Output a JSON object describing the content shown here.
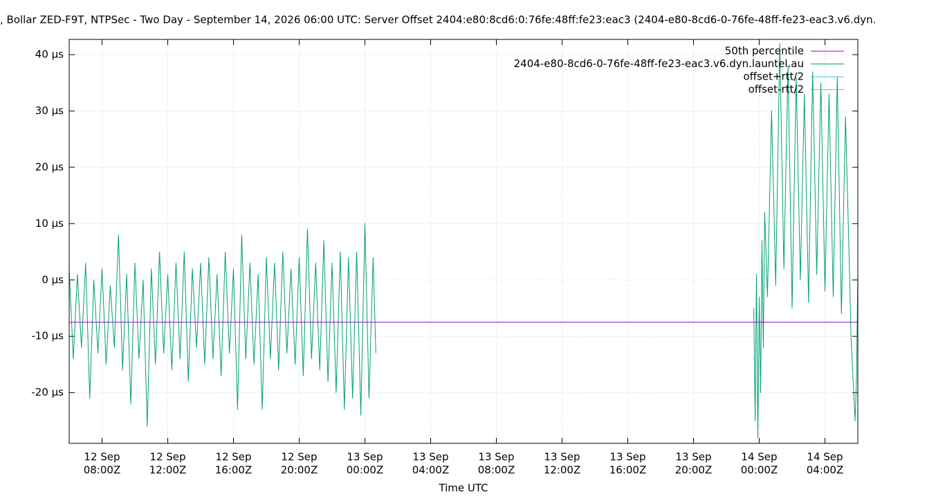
{
  "chart_data": {
    "type": "line",
    "title": ", Bollar ZED-F9T, NTPSec - Two Day - September 14, 2026 06:00 UTC: Server Offset 2404:e80:8cd6:0:76fe:48ff:fe23:eac3 (2404-e80-8cd6-0-76fe-48ff-fe23-eac3.v6.dyn.",
    "x_label": "Time UTC",
    "xlim": [
      "12 Sep 06:00Z",
      "14 Sep 06:00Z"
    ],
    "xticks": [
      {
        "value": "12 Sep 08:00Z",
        "label": [
          "12 Sep",
          "08:00Z"
        ]
      },
      {
        "value": "12 Sep 12:00Z",
        "label": [
          "12 Sep",
          "12:00Z"
        ]
      },
      {
        "value": "12 Sep 16:00Z",
        "label": [
          "12 Sep",
          "16:00Z"
        ]
      },
      {
        "value": "12 Sep 20:00Z",
        "label": [
          "12 Sep",
          "20:00Z"
        ]
      },
      {
        "value": "13 Sep 00:00Z",
        "label": [
          "13 Sep",
          "00:00Z"
        ]
      },
      {
        "value": "13 Sep 04:00Z",
        "label": [
          "13 Sep",
          "04:00Z"
        ]
      },
      {
        "value": "13 Sep 08:00Z",
        "label": [
          "13 Sep",
          "08:00Z"
        ]
      },
      {
        "value": "13 Sep 12:00Z",
        "label": [
          "13 Sep",
          "12:00Z"
        ]
      },
      {
        "value": "13 Sep 16:00Z",
        "label": [
          "13 Sep",
          "16:00Z"
        ]
      },
      {
        "value": "13 Sep 20:00Z",
        "label": [
          "13 Sep",
          "20:00Z"
        ]
      },
      {
        "value": "14 Sep 00:00Z",
        "label": [
          "14 Sep",
          "00:00Z"
        ]
      },
      {
        "value": "14 Sep 04:00Z",
        "label": [
          "14 Sep",
          "04:00Z"
        ]
      }
    ],
    "ylim": [
      -29,
      42.7
    ],
    "yticks": [
      {
        "value": -20,
        "label": "-20 µs"
      },
      {
        "value": -10,
        "label": "-10 µs"
      },
      {
        "value": 0,
        "label": "0 µs"
      },
      {
        "value": 10,
        "label": "10 µs"
      },
      {
        "value": 20,
        "label": "20 µs"
      },
      {
        "value": 30,
        "label": "30 µs"
      },
      {
        "value": 40,
        "label": "40 µs"
      }
    ],
    "grid": true,
    "legend": "top-right",
    "series": [
      {
        "name": "50th percentile",
        "color": "#9400d3",
        "x": [
          "12 Sep 06:00Z",
          "14 Sep 06:00Z"
        ],
        "values": [
          -7.5,
          -7.5
        ]
      },
      {
        "name": "2404-e80-8cd6-0-76fe-48ff-fe23-eac3.v6.dyn.launtel.au",
        "color": "#009e73",
        "x": [
          "12 Sep 06:00Z",
          "12 Sep 06:15Z",
          "12 Sep 06:30Z",
          "12 Sep 06:45Z",
          "12 Sep 07:00Z",
          "12 Sep 07:15Z",
          "12 Sep 07:30Z",
          "12 Sep 07:45Z",
          "12 Sep 08:00Z",
          "12 Sep 08:15Z",
          "12 Sep 08:30Z",
          "12 Sep 08:45Z",
          "12 Sep 09:00Z",
          "12 Sep 09:15Z",
          "12 Sep 09:30Z",
          "12 Sep 09:45Z",
          "12 Sep 10:00Z",
          "12 Sep 10:15Z",
          "12 Sep 10:30Z",
          "12 Sep 10:45Z",
          "12 Sep 11:00Z",
          "12 Sep 11:15Z",
          "12 Sep 11:30Z",
          "12 Sep 11:45Z",
          "12 Sep 12:00Z",
          "12 Sep 12:15Z",
          "12 Sep 12:30Z",
          "12 Sep 12:45Z",
          "12 Sep 13:00Z",
          "12 Sep 13:15Z",
          "12 Sep 13:30Z",
          "12 Sep 13:45Z",
          "12 Sep 14:00Z",
          "12 Sep 14:15Z",
          "12 Sep 14:30Z",
          "12 Sep 14:45Z",
          "12 Sep 15:00Z",
          "12 Sep 15:15Z",
          "12 Sep 15:30Z",
          "12 Sep 15:45Z",
          "12 Sep 16:00Z",
          "12 Sep 16:15Z",
          "12 Sep 16:30Z",
          "12 Sep 16:45Z",
          "12 Sep 17:00Z",
          "12 Sep 17:15Z",
          "12 Sep 17:30Z",
          "12 Sep 17:45Z",
          "12 Sep 18:00Z",
          "12 Sep 18:15Z",
          "12 Sep 18:30Z",
          "12 Sep 18:45Z",
          "12 Sep 19:00Z",
          "12 Sep 19:15Z",
          "12 Sep 19:30Z",
          "12 Sep 19:45Z",
          "12 Sep 20:00Z",
          "12 Sep 20:15Z",
          "12 Sep 20:30Z",
          "12 Sep 20:45Z",
          "12 Sep 21:00Z",
          "12 Sep 21:15Z",
          "12 Sep 21:30Z",
          "12 Sep 21:45Z",
          "12 Sep 22:00Z",
          "12 Sep 22:15Z",
          "12 Sep 22:30Z",
          "12 Sep 22:45Z",
          "12 Sep 23:00Z",
          "12 Sep 23:15Z",
          "12 Sep 23:30Z",
          "12 Sep 23:45Z",
          "13 Sep 00:00Z",
          "13 Sep 00:15Z",
          "13 Sep 00:30Z",
          "13 Sep 00:40Z",
          "13 Sep 12:00Z",
          "13 Sep 23:40Z",
          "13 Sep 23:45Z",
          "13 Sep 23:50Z",
          "13 Sep 23:55Z",
          "14 Sep 00:00Z",
          "14 Sep 00:05Z",
          "14 Sep 00:10Z",
          "14 Sep 00:15Z",
          "14 Sep 00:20Z",
          "14 Sep 00:30Z",
          "14 Sep 00:45Z",
          "14 Sep 01:00Z",
          "14 Sep 01:15Z",
          "14 Sep 01:30Z",
          "14 Sep 01:45Z",
          "14 Sep 02:00Z",
          "14 Sep 02:15Z",
          "14 Sep 02:30Z",
          "14 Sep 02:45Z",
          "14 Sep 03:00Z",
          "14 Sep 03:15Z",
          "14 Sep 03:30Z",
          "14 Sep 03:45Z",
          "14 Sep 04:00Z",
          "14 Sep 04:15Z",
          "14 Sep 04:30Z",
          "14 Sep 04:45Z",
          "14 Sep 05:00Z",
          "14 Sep 05:15Z",
          "14 Sep 05:30Z",
          "14 Sep 05:35Z",
          "14 Sep 05:45Z",
          "14 Sep 05:50Z",
          "14 Sep 05:55Z",
          "14 Sep 06:00Z"
        ],
        "values": [
          2,
          -14,
          1,
          -12,
          3,
          -21,
          0,
          -13,
          2,
          -15,
          -1,
          -12,
          8,
          -16,
          1,
          -22,
          3,
          -14,
          0,
          -26,
          2,
          -15,
          5,
          -13,
          1,
          -16,
          3,
          -14,
          5,
          -18,
          2,
          -12,
          3,
          -15,
          4,
          -14,
          1,
          -17,
          5,
          -13,
          2,
          -23,
          8,
          -14,
          3,
          -15,
          1,
          -23,
          4,
          -14,
          3,
          -16,
          5,
          -13,
          2,
          -15,
          4,
          -17,
          9,
          -14,
          3,
          -16,
          7,
          -18,
          3,
          -20,
          5,
          -23,
          4,
          -21,
          5,
          -24,
          10,
          -21,
          4,
          -13,
          null,
          -5,
          -25,
          1,
          -28,
          -3,
          -20,
          7,
          -12,
          12,
          -3,
          30,
          -1,
          42,
          2,
          38,
          -5,
          36,
          0,
          33,
          -4,
          37,
          1,
          35,
          -2,
          33,
          -3,
          36,
          -6,
          29,
          1,
          -10,
          -20,
          -25,
          -18,
          1
        ]
      },
      {
        "name": "offset+rtt/2",
        "color": "#56b4e9",
        "x": [],
        "values": []
      },
      {
        "name": "offset-rtt/2",
        "color": "#e69f00",
        "x": [],
        "values": []
      }
    ]
  }
}
